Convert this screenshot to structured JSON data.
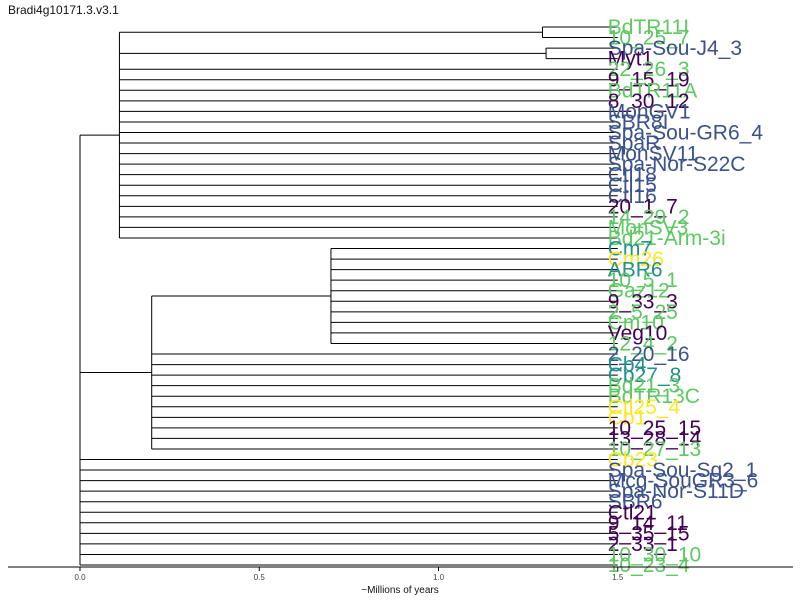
{
  "chart_data": {
    "type": "dendrogram",
    "title": "Bradi4g10171.3.v3.1",
    "xlabel": "~Millions of years",
    "xlim": [
      0.0,
      2.0
    ],
    "x_ticks": [
      {
        "value": 0.0,
        "label": "0.0"
      },
      {
        "value": 0.5,
        "label": "0.5"
      },
      {
        "value": 1.0,
        "label": "1.0"
      },
      {
        "value": 1.5,
        "label": "1.5"
      }
    ],
    "grid": false,
    "palette": {
      "dark_purple": "#440154",
      "slate_blue": "#3b528b",
      "teal": "#21918c",
      "green": "#5ec962",
      "yellow": "#fde725",
      "branch": "#000000"
    },
    "root_height": 1.5,
    "tips": [
      {
        "label": "BdTR11I",
        "color": "#5ec962"
      },
      {
        "label": "10_25_7",
        "color": "#5ec962"
      },
      {
        "label": "Spa-Sou-J4_3",
        "color": "#3b528b"
      },
      {
        "label": "Myt1",
        "color": "#440154"
      },
      {
        "label": "22_26_3",
        "color": "#5ec962"
      },
      {
        "label": "9_15_19",
        "color": "#440154"
      },
      {
        "label": "BdTR11A",
        "color": "#5ec962"
      },
      {
        "label": "8_30_12",
        "color": "#440154"
      },
      {
        "label": "MonGV1",
        "color": "#3b528b"
      },
      {
        "label": "SBR8I",
        "color": "#3b528b"
      },
      {
        "label": "Spa-Sou-GR6_4",
        "color": "#3b528b"
      },
      {
        "label": "SpaR",
        "color": "#3b528b"
      },
      {
        "label": "MonSV11",
        "color": "#3b528b"
      },
      {
        "label": "Spa-Nor-S22C",
        "color": "#3b528b"
      },
      {
        "label": "Ctl18",
        "color": "#3b528b"
      },
      {
        "label": "Ctl15",
        "color": "#3b528b"
      },
      {
        "label": "Ctl16",
        "color": "#3b528b"
      },
      {
        "label": "20_1_7",
        "color": "#440154"
      },
      {
        "label": "14_29_2",
        "color": "#5ec962"
      },
      {
        "label": "MonSV3",
        "color": "#5ec962"
      },
      {
        "label": "Bd21-Arm-3i",
        "color": "#5ec962"
      },
      {
        "label": "Cm7",
        "color": "#21918c"
      },
      {
        "label": "Cm26",
        "color": "#fde725"
      },
      {
        "label": "ABR6",
        "color": "#21918c"
      },
      {
        "label": "10_5_1",
        "color": "#5ec962"
      },
      {
        "label": "Gaz12",
        "color": "#5ec962"
      },
      {
        "label": "9_33_3",
        "color": "#440154"
      },
      {
        "label": "2_5_25",
        "color": "#5ec962"
      },
      {
        "label": "Cm10",
        "color": "#5ec962"
      },
      {
        "label": "Veg10",
        "color": "#440154"
      },
      {
        "label": "12_4_2",
        "color": "#5ec962"
      },
      {
        "label": "2_20_16",
        "color": "#3b528b"
      },
      {
        "label": "Cb4",
        "color": "#21918c"
      },
      {
        "label": "Cb27_8",
        "color": "#21918c"
      },
      {
        "label": "Bd21_3",
        "color": "#5ec962"
      },
      {
        "label": "BdTR13C",
        "color": "#5ec962"
      },
      {
        "label": "Ctl25_4",
        "color": "#fde725"
      },
      {
        "label": "Cb1",
        "color": "#fde725"
      },
      {
        "label": "10_25_15",
        "color": "#440154"
      },
      {
        "label": "13_28_14",
        "color": "#440154"
      },
      {
        "label": "10_27_13",
        "color": "#5ec962"
      },
      {
        "label": "Cb23",
        "color": "#fde725"
      },
      {
        "label": "Spa-Sou-Sg2_1",
        "color": "#3b528b"
      },
      {
        "label": "Mcg-SouGR3_6",
        "color": "#3b528b"
      },
      {
        "label": "Spa-Nor-S11D",
        "color": "#3b528b"
      },
      {
        "label": "SBR6",
        "color": "#3b528b"
      },
      {
        "label": "Ctl21",
        "color": "#440154"
      },
      {
        "label": "9_14_11",
        "color": "#440154"
      },
      {
        "label": "5_35_15",
        "color": "#440154"
      },
      {
        "label": "2_33_1",
        "color": "#440154"
      },
      {
        "label": "10_30_10",
        "color": "#5ec962"
      },
      {
        "label": "10_23_4",
        "color": "#5ec962"
      }
    ],
    "clades": [
      {
        "height": 1.39,
        "members": [
          0,
          20
        ],
        "subclades": [
          {
            "height": 0.21,
            "members": [
              0,
              1
            ]
          },
          {
            "height": 0.2,
            "members": [
              2,
              3
            ]
          }
        ]
      },
      {
        "height": 1.3,
        "members": [
          21,
          40
        ],
        "subclades": [
          {
            "height": 0.8,
            "members": [
              21,
              30
            ]
          }
        ]
      }
    ]
  }
}
